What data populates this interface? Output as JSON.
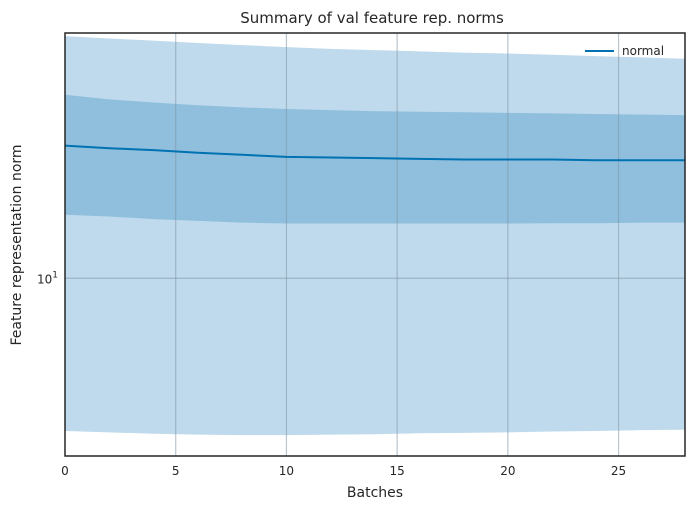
{
  "chart_data": {
    "type": "line",
    "title": "Summary of val feature rep. norms",
    "xlabel": "Batches",
    "ylabel": "Feature representation norm",
    "xlim": [
      0,
      28
    ],
    "ylim": [
      4.6,
      29.2
    ],
    "yscale": "log",
    "grid": true,
    "legend_position": "top-right",
    "x_ticks": [
      0,
      5,
      10,
      15,
      20,
      25
    ],
    "x_tick_labels": [
      "0",
      "5",
      "10",
      "15",
      "20",
      "25"
    ],
    "y_ticks": [
      {
        "value": 10,
        "base": "10",
        "exponent": "1"
      }
    ],
    "x": [
      0,
      2,
      4,
      6,
      8,
      10,
      12,
      14,
      16,
      18,
      20,
      22,
      24,
      26,
      28
    ],
    "series": [
      {
        "name": "normal",
        "color": "#0072b2",
        "values": [
          17.85,
          17.65,
          17.5,
          17.3,
          17.15,
          17.0,
          16.95,
          16.9,
          16.85,
          16.8,
          16.8,
          16.8,
          16.75,
          16.75,
          16.75
        ],
        "band_inner": {
          "color": "#8fbfdd",
          "upper": [
            22.3,
            21.85,
            21.55,
            21.3,
            21.1,
            20.95,
            20.85,
            20.75,
            20.7,
            20.65,
            20.6,
            20.55,
            20.5,
            20.45,
            20.4
          ],
          "lower": [
            13.2,
            13.1,
            12.95,
            12.85,
            12.75,
            12.7,
            12.7,
            12.7,
            12.7,
            12.7,
            12.7,
            12.72,
            12.72,
            12.75,
            12.75
          ]
        },
        "band_outer": {
          "color": "#bfdaec",
          "upper": [
            28.8,
            28.5,
            28.25,
            27.95,
            27.7,
            27.45,
            27.25,
            27.1,
            26.95,
            26.8,
            26.7,
            26.55,
            26.4,
            26.25,
            26.1
          ],
          "lower": [
            5.13,
            5.1,
            5.07,
            5.05,
            5.04,
            5.04,
            5.05,
            5.06,
            5.08,
            5.09,
            5.1,
            5.12,
            5.13,
            5.15,
            5.16
          ]
        }
      }
    ]
  }
}
